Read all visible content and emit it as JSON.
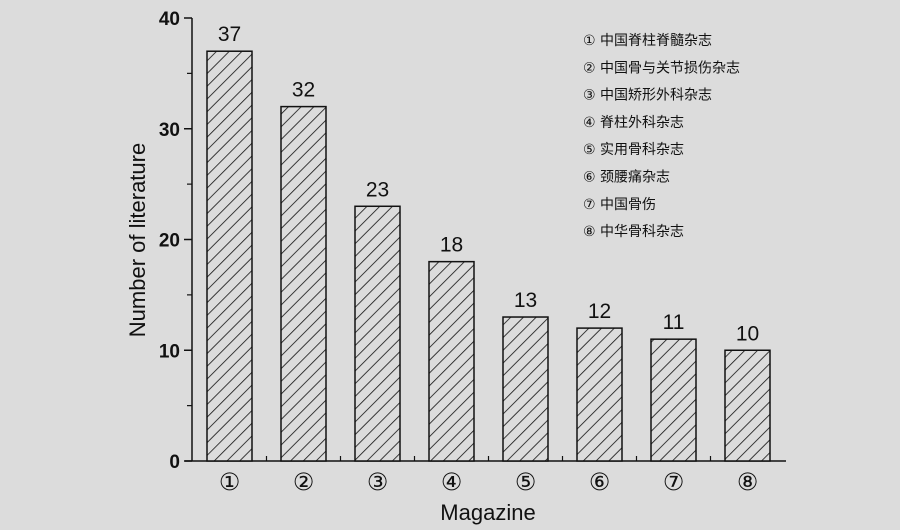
{
  "chart_data": {
    "type": "bar",
    "title": "",
    "xlabel": "Magazine",
    "ylabel": "Number of literature",
    "ylim": [
      0,
      40
    ],
    "yticks": [
      "0",
      "10",
      "20",
      "30",
      "40"
    ],
    "categories": [
      "①",
      "②",
      "③",
      "④",
      "⑤",
      "⑥",
      "⑦",
      "⑧"
    ],
    "values": [
      37,
      32,
      23,
      18,
      13,
      12,
      11,
      10
    ],
    "data_labels": [
      "37",
      "32",
      "23",
      "18",
      "13",
      "12",
      "11",
      "10"
    ],
    "legend": [
      "① 中国脊柱脊髓杂志",
      "② 中国骨与关节损伤杂志",
      "③ 中国矫形外科杂志",
      "④ 脊柱外科杂志",
      "⑤ 实用骨科杂志",
      "⑥ 颈腰痛杂志",
      "⑦ 中国骨伤",
      "⑧ 中华骨科杂志"
    ],
    "legend_position": "top-right",
    "bar_fill": "hatched diagonal",
    "grid": false,
    "colors": {
      "background": "#dcdcdc",
      "bar_stroke": "#111111",
      "hatch": "#111111"
    }
  }
}
